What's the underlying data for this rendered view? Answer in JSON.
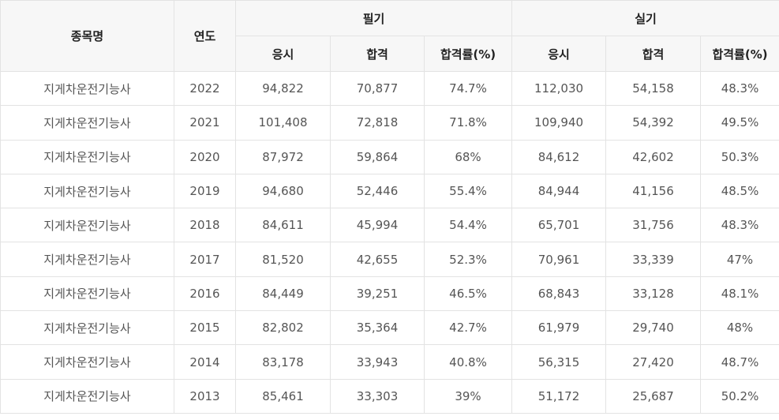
{
  "table": {
    "headers": {
      "name": "종목명",
      "year": "연도",
      "written": "필기",
      "practical": "실기",
      "sub": [
        "응시",
        "합격",
        "합격률(%)",
        "응시",
        "합격",
        "합격률(%)"
      ]
    },
    "rows": [
      {
        "name": "지게차운전기능사",
        "year": "2022",
        "w_applied": "94,822",
        "w_passed": "70,877",
        "w_rate": "74.7%",
        "p_applied": "112,030",
        "p_passed": "54,158",
        "p_rate": "48.3%"
      },
      {
        "name": "지게차운전기능사",
        "year": "2021",
        "w_applied": "101,408",
        "w_passed": "72,818",
        "w_rate": "71.8%",
        "p_applied": "109,940",
        "p_passed": "54,392",
        "p_rate": "49.5%"
      },
      {
        "name": "지게차운전기능사",
        "year": "2020",
        "w_applied": "87,972",
        "w_passed": "59,864",
        "w_rate": "68%",
        "p_applied": "84,612",
        "p_passed": "42,602",
        "p_rate": "50.3%"
      },
      {
        "name": "지게차운전기능사",
        "year": "2019",
        "w_applied": "94,680",
        "w_passed": "52,446",
        "w_rate": "55.4%",
        "p_applied": "84,944",
        "p_passed": "41,156",
        "p_rate": "48.5%"
      },
      {
        "name": "지게차운전기능사",
        "year": "2018",
        "w_applied": "84,611",
        "w_passed": "45,994",
        "w_rate": "54.4%",
        "p_applied": "65,701",
        "p_passed": "31,756",
        "p_rate": "48.3%"
      },
      {
        "name": "지게차운전기능사",
        "year": "2017",
        "w_applied": "81,520",
        "w_passed": "42,655",
        "w_rate": "52.3%",
        "p_applied": "70,961",
        "p_passed": "33,339",
        "p_rate": "47%"
      },
      {
        "name": "지게차운전기능사",
        "year": "2016",
        "w_applied": "84,449",
        "w_passed": "39,251",
        "w_rate": "46.5%",
        "p_applied": "68,843",
        "p_passed": "33,128",
        "p_rate": "48.1%"
      },
      {
        "name": "지게차운전기능사",
        "year": "2015",
        "w_applied": "82,802",
        "w_passed": "35,364",
        "w_rate": "42.7%",
        "p_applied": "61,979",
        "p_passed": "29,740",
        "p_rate": "48%"
      },
      {
        "name": "지게차운전기능사",
        "year": "2014",
        "w_applied": "83,178",
        "w_passed": "33,943",
        "w_rate": "40.8%",
        "p_applied": "56,315",
        "p_passed": "27,420",
        "p_rate": "48.7%"
      },
      {
        "name": "지게차운전기능사",
        "year": "2013",
        "w_applied": "85,461",
        "w_passed": "33,303",
        "w_rate": "39%",
        "p_applied": "51,172",
        "p_passed": "25,687",
        "p_rate": "50.2%"
      }
    ]
  }
}
